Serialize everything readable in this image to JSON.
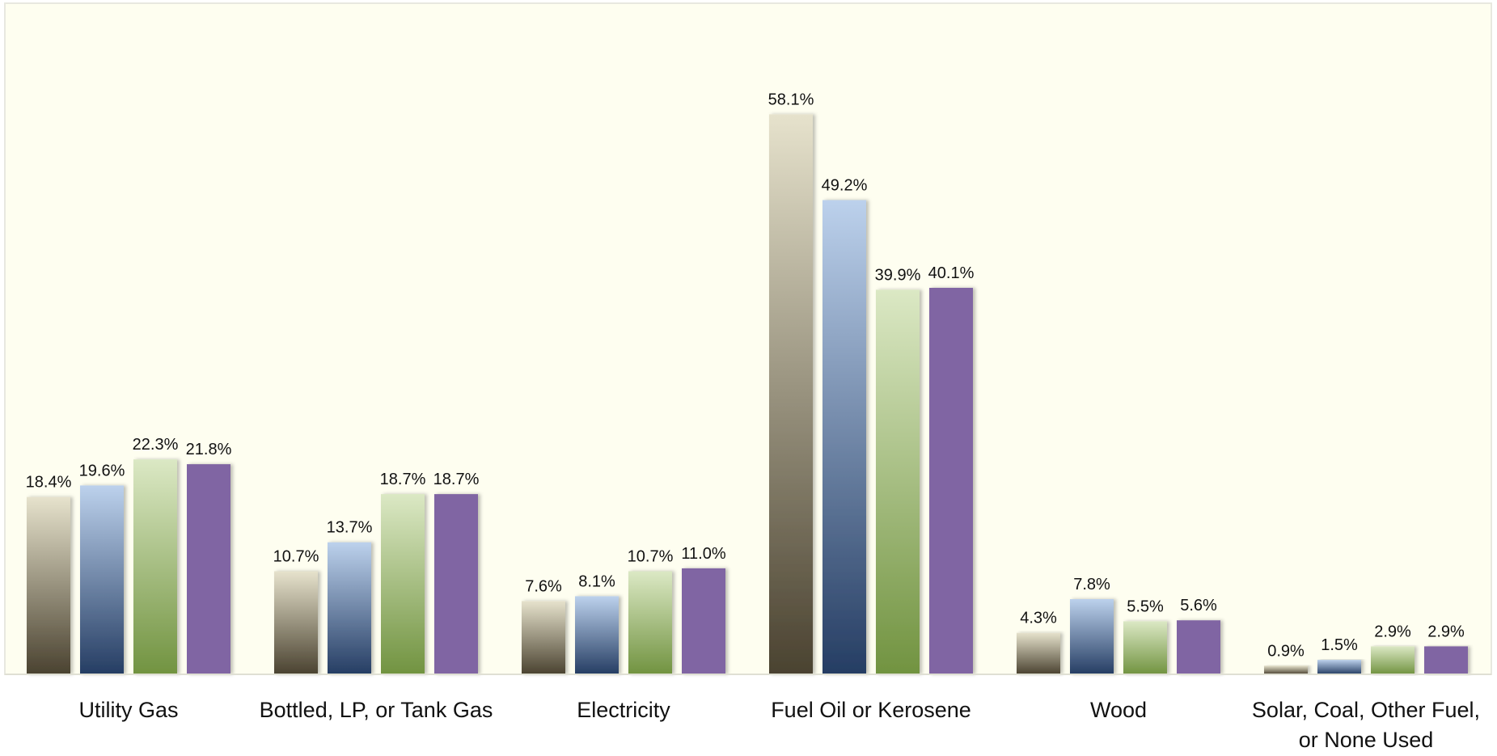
{
  "chart_data": {
    "type": "bar",
    "title": "",
    "xlabel": "",
    "ylabel": "",
    "ylim": [
      0,
      70
    ],
    "grid": false,
    "legend": "none",
    "categories": [
      "Utility Gas",
      "Bottled, LP, or Tank Gas",
      "Electricity",
      "Fuel Oil or Kerosene",
      "Wood",
      "Solar, Coal, Other Fuel, or None Used"
    ],
    "category_lines": [
      [
        "Utility Gas"
      ],
      [
        "Bottled, LP, or Tank Gas"
      ],
      [
        "Electricity"
      ],
      [
        "Fuel Oil or Kerosene"
      ],
      [
        "Wood"
      ],
      [
        "Solar, Coal, Other Fuel,",
        "or None Used"
      ]
    ],
    "series": [
      {
        "values": [
          18.4,
          10.7,
          7.6,
          58.1,
          4.3,
          0.9
        ],
        "labels": [
          "18.4%",
          "10.7%",
          "7.6%",
          "58.1%",
          "4.3%",
          "0.9%"
        ],
        "color_top": "#e6e2cc",
        "color_bottom": "#4a4230"
      },
      {
        "values": [
          19.6,
          13.7,
          8.1,
          49.2,
          7.8,
          1.5
        ],
        "labels": [
          "19.6%",
          "13.7%",
          "8.1%",
          "49.2%",
          "7.8%",
          "1.5%"
        ],
        "color_top": "#bcd1ec",
        "color_bottom": "#253d63"
      },
      {
        "values": [
          22.3,
          18.7,
          10.7,
          39.9,
          5.5,
          2.9
        ],
        "labels": [
          "22.3%",
          "18.7%",
          "10.7%",
          "39.9%",
          "5.5%",
          "2.9%"
        ],
        "color_top": "#dbe8c4",
        "color_bottom": "#719340"
      },
      {
        "values": [
          21.8,
          18.7,
          11.0,
          40.1,
          5.6,
          2.9
        ],
        "labels": [
          "21.8%",
          "18.7%",
          "11.0%",
          "40.1%",
          "5.6%",
          "2.9%"
        ],
        "color_top": "#8065a3",
        "color_bottom": "#8065a3"
      }
    ],
    "colors": {
      "plot_background": "#fefef0",
      "plot_border": "#e8e8e0",
      "baseline": "#e0e0d4",
      "text": "#111111"
    }
  }
}
